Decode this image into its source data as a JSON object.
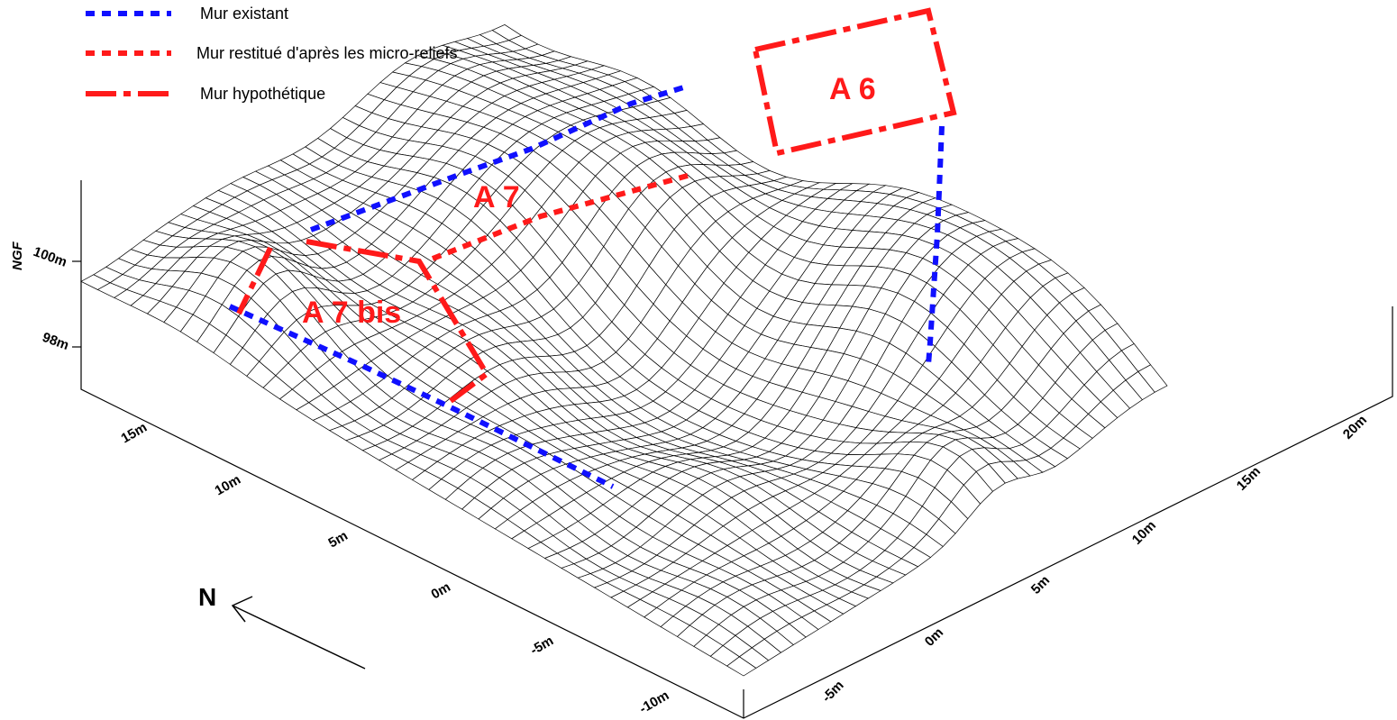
{
  "legend": [
    {
      "label": "Mur existant"
    },
    {
      "label": "Mur restitué d'après les micro-reliefs"
    },
    {
      "label": "Mur hypothétique"
    }
  ],
  "areas": [
    "A 6",
    "A 7",
    "A 7 bis"
  ],
  "north": "N",
  "z_axis": {
    "label": "NGF",
    "ticks": [
      "100m",
      "98m"
    ]
  },
  "left_axis": {
    "ticks": [
      "15m",
      "10m",
      "5m",
      "0m",
      "-5m",
      "-10m"
    ]
  },
  "right_axis": {
    "ticks": [
      "-5m",
      "0m",
      "5m",
      "10m",
      "15m",
      "20m"
    ]
  }
}
